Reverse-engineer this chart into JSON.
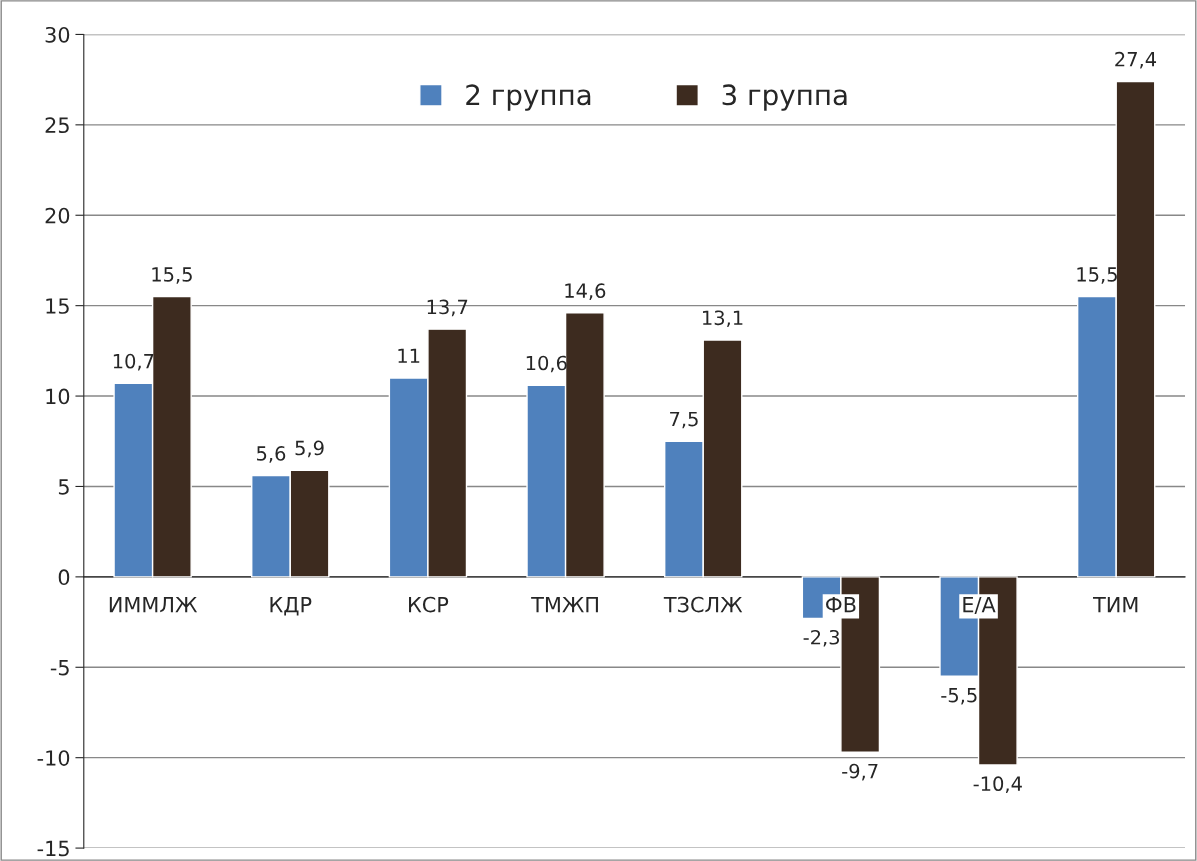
{
  "chart_data": {
    "type": "bar",
    "categories": [
      "ИММЛЖ",
      "КДР",
      "КСР",
      "ТМЖП",
      "ТЗСЛЖ",
      "ФВ",
      "Е/А",
      "ТИМ"
    ],
    "series": [
      {
        "name": "2 группа",
        "color": "#4f81bd",
        "values": [
          10.7,
          5.6,
          11,
          10.6,
          7.5,
          -2.3,
          -5.5,
          15.5
        ],
        "value_labels": [
          "10,7",
          "5,6",
          "11",
          "10,6",
          "7,5",
          "-2,3",
          "-5,5",
          "15,5"
        ]
      },
      {
        "name": "3 группа",
        "color": "#3d2b1f",
        "values": [
          15.5,
          5.9,
          13.7,
          14.6,
          13.1,
          -9.7,
          -10.4,
          27.4
        ],
        "value_labels": [
          "15,5",
          "5,9",
          "13,7",
          "14,6",
          "13,1",
          "-9,7",
          "-10,4",
          "27,4"
        ]
      }
    ],
    "ylim": [
      -15,
      30
    ],
    "yticks": [
      -15,
      -10,
      -5,
      0,
      5,
      10,
      15,
      20,
      25,
      30
    ],
    "grid": "y",
    "legend": "top"
  }
}
